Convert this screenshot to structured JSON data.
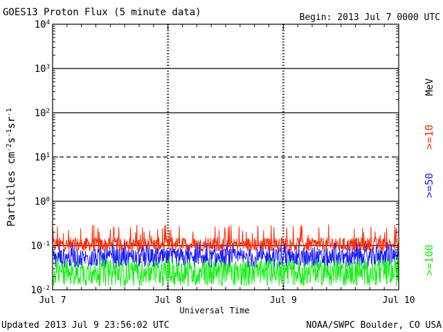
{
  "header": {
    "title": "GOES13 Proton Flux (5 minute data)",
    "begin": "Begin: 2013 Jul 7 0000 UTC"
  },
  "footer": {
    "updated": "Updated 2013 Jul  9 23:56:02 UTC",
    "credit": "NOAA/SWPC Boulder, CO USA"
  },
  "chart_data": {
    "type": "line",
    "title": "GOES13 Proton Flux (5 minute data)",
    "xlabel": "Universal Time",
    "ylabel": "Particles cm^-2 s^-1 sr^-1",
    "ylabel_parts": {
      "base": "Particles cm",
      "sup1": "-2",
      "mid1": "s",
      "sup2": "-1",
      "mid2": "sr",
      "sup3": "-1"
    },
    "yscale": "log",
    "ylim": [
      0.01,
      10000
    ],
    "xlim": [
      "2013-07-07 00:00",
      "2013-07-10 00:00"
    ],
    "x_ticks": [
      "Jul 7",
      "Jul 8",
      "Jul 9",
      "Jul 10"
    ],
    "y_ticks": [
      {
        "base": "10",
        "exp": "-2",
        "value": 0.01
      },
      {
        "base": "10",
        "exp": "-1",
        "value": 0.1
      },
      {
        "base": "10",
        "exp": "0",
        "value": 1
      },
      {
        "base": "10",
        "exp": "1",
        "value": 10
      },
      {
        "base": "10",
        "exp": "2",
        "value": 100
      },
      {
        "base": "10",
        "exp": "3",
        "value": 1000
      },
      {
        "base": "10",
        "exp": "4",
        "value": 10000
      }
    ],
    "reference_lines": [
      {
        "value": 1000,
        "style": "solid"
      },
      {
        "value": 100,
        "style": "solid"
      },
      {
        "value": 10,
        "style": "dashed"
      },
      {
        "value": 1,
        "style": "solid"
      },
      {
        "value": 0.1,
        "style": "solid"
      }
    ],
    "legend_unit": "MeV",
    "legend_placement": "right",
    "series": [
      {
        "name": ">=10",
        "color": "#ff2a00",
        "base": 0.105,
        "spread": 0.16,
        "spike_max": 0.3,
        "samples": 864
      },
      {
        "name": ">=50",
        "color": "#1a1aff",
        "base": 0.052,
        "spread": 0.22,
        "spike_max": 0.12,
        "samples": 864
      },
      {
        "name": ">=100",
        "color": "#14f014",
        "base": 0.024,
        "spread": 0.3,
        "spike_max": 0.055,
        "samples": 864
      }
    ]
  }
}
